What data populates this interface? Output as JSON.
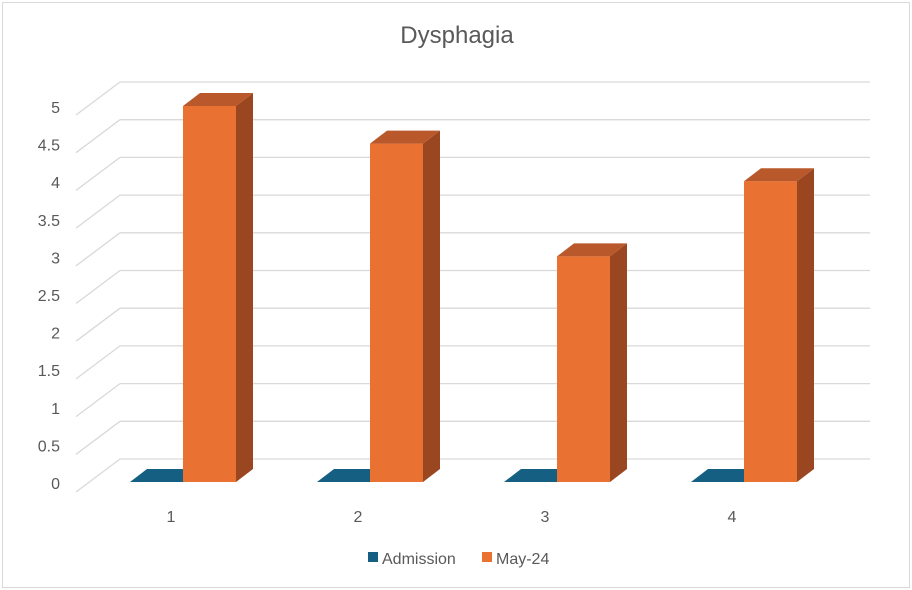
{
  "chart_data": {
    "type": "bar",
    "style": "3d-clustered-column",
    "title": "Dysphagia",
    "xlabel": "",
    "ylabel": "",
    "categories": [
      "1",
      "2",
      "3",
      "4"
    ],
    "ylim": [
      0,
      5
    ],
    "ytick_step": 0.5,
    "yticks": [
      "0",
      "0.5",
      "1",
      "1.5",
      "2",
      "2.5",
      "3",
      "3.5",
      "4",
      "4.5",
      "5"
    ],
    "grid": true,
    "legend_position": "bottom",
    "series": [
      {
        "name": "Admission",
        "values": [
          0,
          0,
          0,
          0
        ],
        "color": "#156082",
        "top_color": "#0f4d6a",
        "side_color": "#0c3e55"
      },
      {
        "name": "May-24",
        "values": [
          5,
          4.5,
          3,
          4
        ],
        "color": "#e97132",
        "top_color": "#b9582a",
        "side_color": "#9a4620"
      }
    ]
  }
}
